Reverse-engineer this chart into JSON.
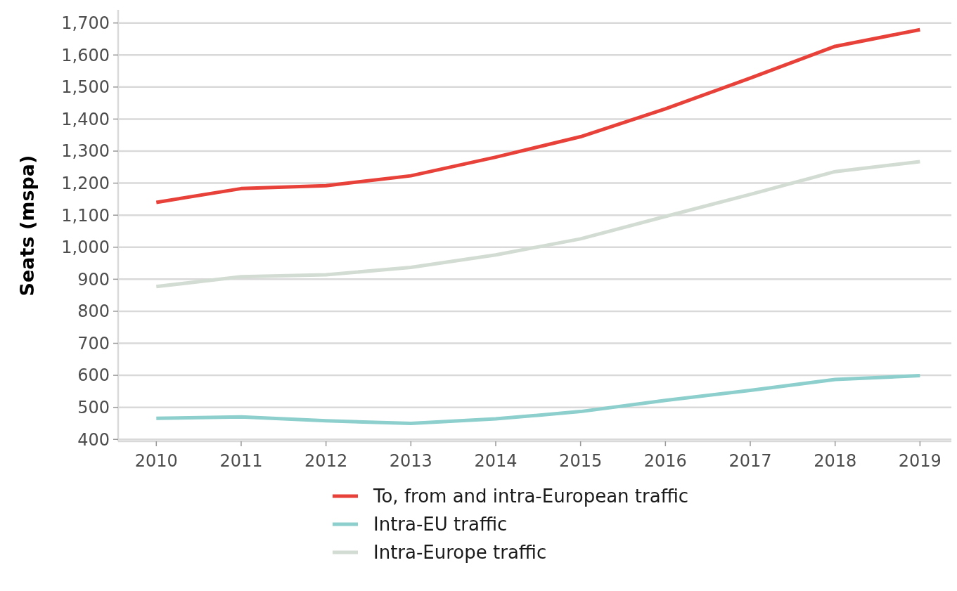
{
  "chart_data": {
    "type": "line",
    "ylabel": "Seats (mspa)",
    "x": [
      2010,
      2011,
      2012,
      2013,
      2014,
      2015,
      2016,
      2017,
      2018,
      2019
    ],
    "xlim": [
      2009.55,
      2019.37
    ],
    "xticks": [
      2010,
      2011,
      2012,
      2013,
      2014,
      2015,
      2016,
      2017,
      2018,
      2019
    ],
    "ylim": [
      394,
      1741
    ],
    "yticks": [
      {
        "value": 400,
        "label": "400"
      },
      {
        "value": 500,
        "label": "500"
      },
      {
        "value": 600,
        "label": "600"
      },
      {
        "value": 700,
        "label": "700"
      },
      {
        "value": 800,
        "label": "800"
      },
      {
        "value": 900,
        "label": "900"
      },
      {
        "value": 1000,
        "label": "1,000"
      },
      {
        "value": 1100,
        "label": "1,100"
      },
      {
        "value": 1200,
        "label": "1,200"
      },
      {
        "value": 1300,
        "label": "1,300"
      },
      {
        "value": 1400,
        "label": "1,400"
      },
      {
        "value": 1500,
        "label": "1,500"
      },
      {
        "value": 1600,
        "label": "1,600"
      },
      {
        "value": 1700,
        "label": "1,700"
      }
    ],
    "grid": "y",
    "legend": "bottom",
    "line_style": "solid",
    "marker": "none",
    "series": [
      {
        "name": "To, from and intra-European traffic",
        "color": "#e8413a",
        "values": [
          1140,
          1183,
          1192,
          1223,
          1281,
          1345,
          1432,
          1528,
          1627,
          1679
        ]
      },
      {
        "name": "Intra-EU traffic",
        "color": "#8ccfcc",
        "values": [
          466,
          470,
          458,
          450,
          464,
          487,
          522,
          553,
          587,
          599
        ]
      },
      {
        "name": "Intra-Europe traffic",
        "color": "#d3dcd3",
        "values": [
          877,
          908,
          914,
          937,
          976,
          1026,
          1096,
          1165,
          1236,
          1267
        ]
      }
    ]
  }
}
